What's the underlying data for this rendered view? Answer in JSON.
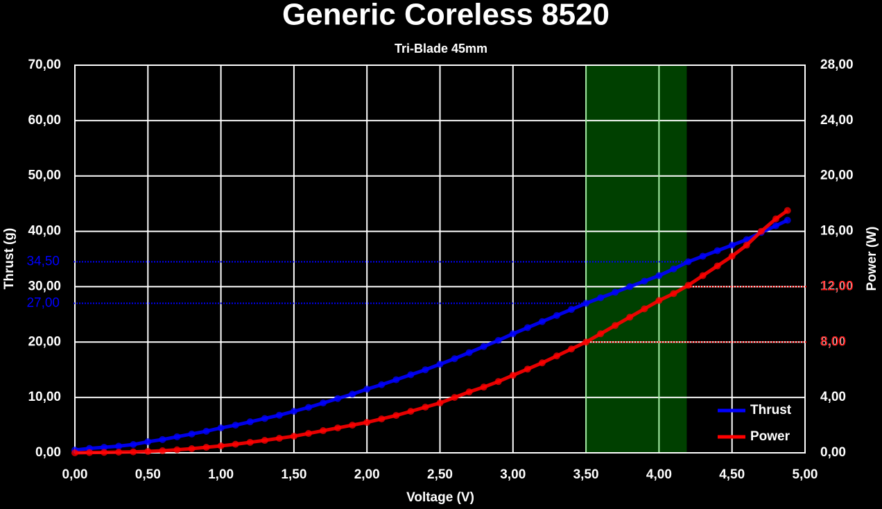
{
  "chart_data": {
    "type": "line",
    "title": "Generic Coreless 8520",
    "subtitle": "Tri-Blade 45mm",
    "x_label": "Voltage (V)",
    "y_label": "Thrust (g)",
    "y2_label": "Power (W)",
    "x": [
      0,
      0.1,
      0.2,
      0.3,
      0.4,
      0.5,
      0.6,
      0.7,
      0.8,
      0.9,
      1.0,
      1.1,
      1.2,
      1.3,
      1.4,
      1.5,
      1.6,
      1.7,
      1.8,
      1.9,
      2.0,
      2.1,
      2.2,
      2.3,
      2.4,
      2.5,
      2.6,
      2.7,
      2.8,
      2.9,
      3.0,
      3.1,
      3.2,
      3.3,
      3.4,
      3.5,
      3.6,
      3.7,
      3.8,
      3.9,
      4.0,
      4.1,
      4.2,
      4.3,
      4.4,
      4.5,
      4.6,
      4.7,
      4.8,
      4.88
    ],
    "series": [
      {
        "name": "Thrust",
        "color": "#0000ff",
        "axis": "y",
        "values": [
          0.5,
          0.8,
          1.0,
          1.2,
          1.5,
          2.0,
          2.4,
          2.9,
          3.4,
          3.9,
          4.5,
          5.0,
          5.6,
          6.2,
          6.8,
          7.5,
          8.2,
          9.0,
          9.8,
          10.6,
          11.5,
          12.3,
          13.2,
          14.1,
          15.0,
          16.0,
          17.0,
          18.1,
          19.2,
          20.3,
          21.5,
          22.6,
          23.7,
          24.8,
          25.9,
          27.0,
          28.0,
          29.0,
          30.0,
          31.0,
          32.0,
          33.2,
          34.5,
          35.5,
          36.5,
          37.5,
          38.5,
          39.8,
          41.0,
          42.0
        ]
      },
      {
        "name": "Power",
        "color": "#ff0000",
        "axis": "y2",
        "values": [
          0,
          0.02,
          0.03,
          0.05,
          0.07,
          0.1,
          0.15,
          0.22,
          0.3,
          0.4,
          0.5,
          0.62,
          0.76,
          0.9,
          1.05,
          1.2,
          1.4,
          1.6,
          1.8,
          2.0,
          2.2,
          2.45,
          2.7,
          3.0,
          3.3,
          3.6,
          4.0,
          4.4,
          4.75,
          5.15,
          5.6,
          6.05,
          6.5,
          7.0,
          7.5,
          8.0,
          8.6,
          9.2,
          9.8,
          10.4,
          11.0,
          11.5,
          12.1,
          12.8,
          13.5,
          14.2,
          15.0,
          16.0,
          16.9,
          17.5
        ]
      }
    ],
    "xlim": [
      0,
      5
    ],
    "xticks": [
      {
        "value": 0,
        "label": "0,00"
      },
      {
        "value": 0.5,
        "label": "0,50"
      },
      {
        "value": 1,
        "label": "1,00"
      },
      {
        "value": 1.5,
        "label": "1,50"
      },
      {
        "value": 2,
        "label": "2,00"
      },
      {
        "value": 2.5,
        "label": "2,50"
      },
      {
        "value": 3,
        "label": "3,00"
      },
      {
        "value": 3.5,
        "label": "3,50"
      },
      {
        "value": 4,
        "label": "4,00"
      },
      {
        "value": 4.5,
        "label": "4,50"
      },
      {
        "value": 5,
        "label": "5,00"
      }
    ],
    "ylim": [
      0,
      70
    ],
    "yticks": [
      {
        "value": 0,
        "label": "0,00"
      },
      {
        "value": 10,
        "label": "10,00"
      },
      {
        "value": 20,
        "label": "20,00"
      },
      {
        "value": 30,
        "label": "30,00"
      },
      {
        "value": 40,
        "label": "40,00"
      },
      {
        "value": 50,
        "label": "50,00"
      },
      {
        "value": 60,
        "label": "60,00"
      },
      {
        "value": 70,
        "label": "70,00"
      }
    ],
    "y2lim": [
      0,
      28
    ],
    "y2ticks": [
      {
        "value": 0,
        "label": "0,00"
      },
      {
        "value": 4,
        "label": "4,00"
      },
      {
        "value": 8,
        "label": "8,00"
      },
      {
        "value": 12,
        "label": "12,00"
      },
      {
        "value": 16,
        "label": "16,00"
      },
      {
        "value": 20,
        "label": "20,00"
      },
      {
        "value": 24,
        "label": "24,00"
      },
      {
        "value": 28,
        "label": "28,00"
      }
    ],
    "shaded_region": {
      "x": [
        3.5,
        4.19
      ],
      "color": "#004000",
      "edge_color": "#a8f0a8"
    },
    "reference_lines": [
      {
        "axis": "y",
        "value": 34.5,
        "label": "34,50"
      },
      {
        "axis": "y",
        "value": 27,
        "label": "27,00"
      },
      {
        "axis": "y2",
        "value": 12,
        "label": "12,00"
      },
      {
        "axis": "y2",
        "value": 8,
        "label": "8,00"
      }
    ],
    "grid": true,
    "legend": "lower right"
  }
}
